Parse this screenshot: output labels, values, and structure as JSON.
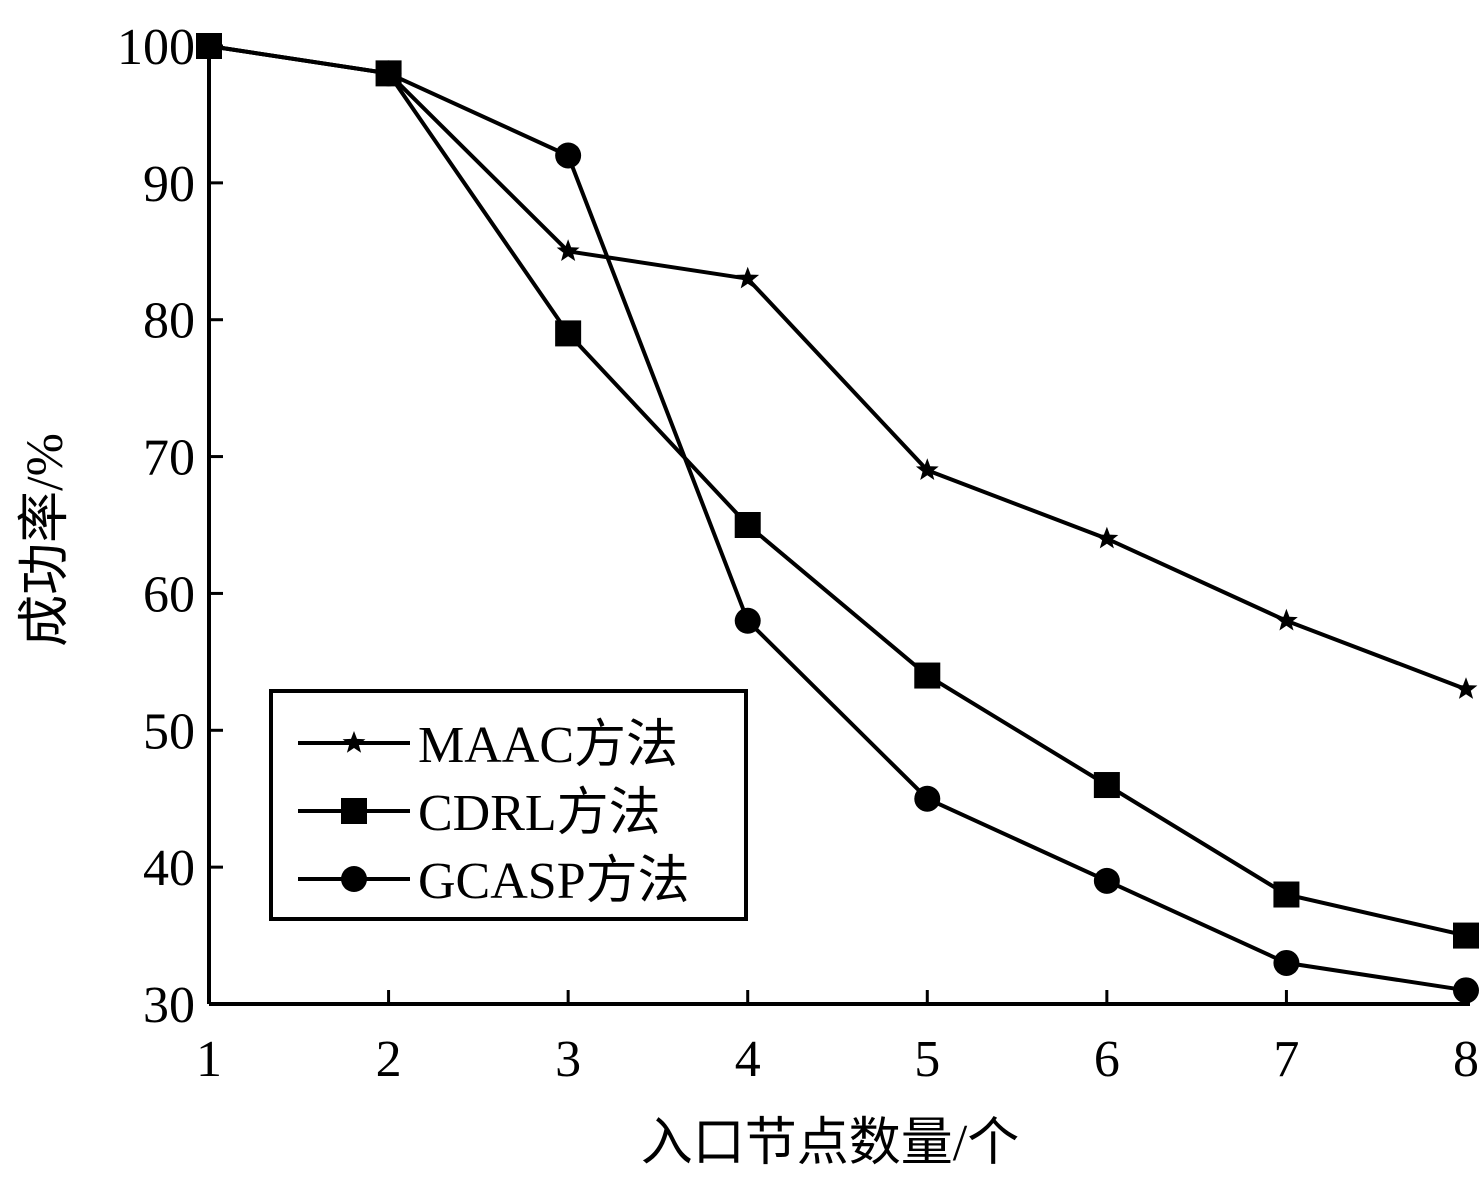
{
  "chart_data": {
    "type": "line",
    "title": "",
    "xlabel": "入口节点数量/个",
    "ylabel": "成功率/%",
    "x": [
      1,
      2,
      3,
      4,
      5,
      6,
      7,
      8
    ],
    "xlim": [
      1,
      8
    ],
    "ylim": [
      30,
      100
    ],
    "yticks": [
      30,
      40,
      50,
      60,
      70,
      80,
      90,
      100
    ],
    "xticks": [
      1,
      2,
      3,
      4,
      5,
      6,
      7,
      8
    ],
    "grid": false,
    "legend_position": "center-left",
    "series": [
      {
        "name": "MAAC方法",
        "marker": "star",
        "color": "#000000",
        "values": [
          100,
          98,
          85,
          83,
          69,
          64,
          58,
          53
        ]
      },
      {
        "name": "CDRL方法",
        "marker": "square",
        "color": "#000000",
        "values": [
          100,
          98,
          79,
          65,
          54,
          46,
          38,
          35
        ]
      },
      {
        "name": "GCASP方法",
        "marker": "circle",
        "color": "#000000",
        "values": [
          100,
          98,
          92,
          58,
          45,
          39,
          33,
          31
        ]
      }
    ]
  }
}
